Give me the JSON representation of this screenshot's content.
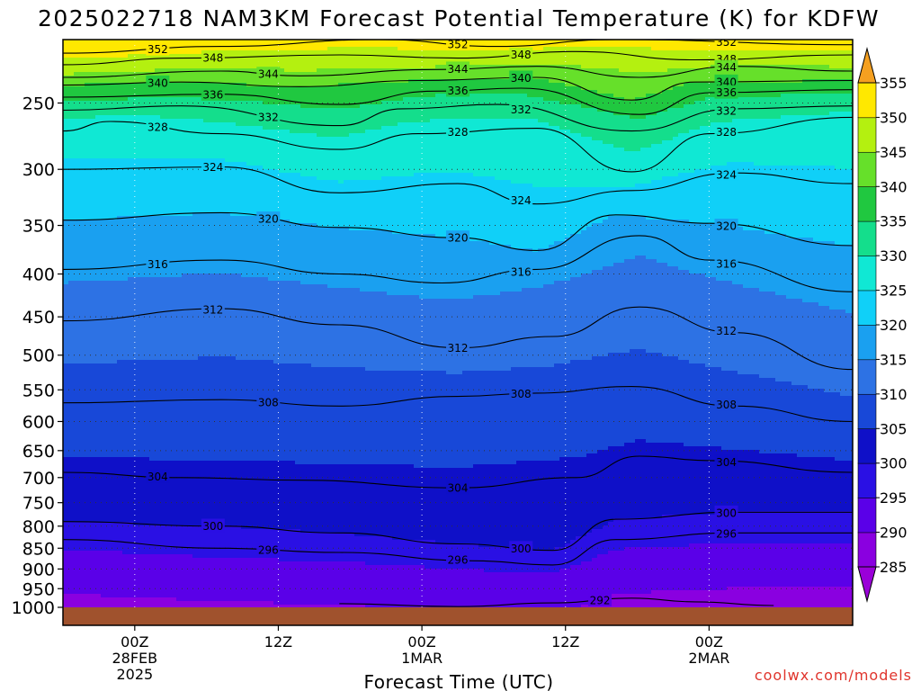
{
  "chart_data": {
    "type": "heatmap",
    "title": "2025022718 NAM3KM Forecast Potential Temperature (K) for KDFW",
    "xlabel": "Forecast Time (UTC)",
    "ylabel": "",
    "y_scale": "log",
    "y_reversed": true,
    "ylim": [
      1000,
      210
    ],
    "xlim": [
      "2025-02-27T18:00Z",
      "2025-03-02T12:00Z"
    ],
    "y_ticks": [
      250,
      300,
      350,
      400,
      450,
      500,
      550,
      600,
      650,
      700,
      750,
      800,
      850,
      900,
      950,
      1000
    ],
    "y_tick_labels": [
      "250",
      "300",
      "350",
      "400",
      "450",
      "500",
      "550",
      "600",
      "650",
      "700",
      "750",
      "800",
      "850",
      "900",
      "950",
      "1000"
    ],
    "x_ticks": [
      {
        "time": "2025-02-28T00:00Z",
        "lines": [
          "00Z",
          "28FEB",
          "2025"
        ]
      },
      {
        "time": "2025-02-28T12:00Z",
        "lines": [
          "12Z"
        ]
      },
      {
        "time": "2025-03-01T00:00Z",
        "lines": [
          "00Z",
          "1MAR"
        ]
      },
      {
        "time": "2025-03-01T12:00Z",
        "lines": [
          "12Z"
        ]
      },
      {
        "time": "2025-03-02T00:00Z",
        "lines": [
          "00Z",
          "2MAR"
        ]
      }
    ],
    "grid": "dotted",
    "colorbar": {
      "levels": [
        285,
        290,
        295,
        300,
        305,
        310,
        315,
        320,
        325,
        330,
        335,
        340,
        345,
        350,
        355
      ],
      "labels": [
        "285",
        "290",
        "295",
        "300",
        "305",
        "310",
        "315",
        "320",
        "325",
        "330",
        "335",
        "340",
        "345",
        "350",
        "355"
      ],
      "colors": [
        "#8a00e0",
        "#5a00e8",
        "#2a10e4",
        "#0f10c8",
        "#1848d8",
        "#2d72e4",
        "#1aa0f0",
        "#10d0f8",
        "#10e8d4",
        "#14de8c",
        "#20c840",
        "#66e02a",
        "#b4f010",
        "#ffe800",
        "#fbb40a"
      ],
      "below_color": "#9a00d8",
      "above_color": "#f5a020"
    },
    "contour_interval_K": 4,
    "contour_labels_visible": [
      "352",
      "348",
      "344",
      "340",
      "336",
      "332",
      "328",
      "324",
      "320",
      "316",
      "312",
      "308",
      "304",
      "300",
      "296",
      "292"
    ],
    "contours": [
      {
        "value": 352,
        "points": [
          [
            0,
            218
          ],
          [
            0.2,
            214
          ],
          [
            0.4,
            210
          ],
          [
            0.55,
            214
          ],
          [
            0.7,
            210
          ],
          [
            1,
            213
          ]
        ]
      },
      {
        "value": 348,
        "points": [
          [
            0,
            225
          ],
          [
            0.15,
            221
          ],
          [
            0.35,
            219
          ],
          [
            0.5,
            221
          ],
          [
            0.65,
            217
          ],
          [
            0.8,
            222
          ],
          [
            1,
            219
          ]
        ]
      },
      {
        "value": 344,
        "points": [
          [
            0,
            233
          ],
          [
            0.2,
            229
          ],
          [
            0.3,
            232
          ],
          [
            0.47,
            228
          ],
          [
            0.6,
            226
          ],
          [
            0.73,
            233
          ],
          [
            0.85,
            226
          ],
          [
            1,
            229
          ]
        ]
      },
      {
        "value": 340,
        "points": [
          [
            0,
            238
          ],
          [
            0.15,
            236
          ],
          [
            0.3,
            239
          ],
          [
            0.45,
            235
          ],
          [
            0.6,
            233
          ],
          [
            0.72,
            248
          ],
          [
            0.8,
            236
          ],
          [
            1,
            235
          ]
        ]
      },
      {
        "value": 336,
        "points": [
          [
            0,
            246
          ],
          [
            0.2,
            244
          ],
          [
            0.35,
            251
          ],
          [
            0.47,
            242
          ],
          [
            0.58,
            240
          ],
          [
            0.73,
            258
          ],
          [
            0.82,
            243
          ],
          [
            1,
            241
          ]
        ]
      },
      {
        "value": 332,
        "points": [
          [
            0,
            255
          ],
          [
            0.15,
            252
          ],
          [
            0.35,
            266
          ],
          [
            0.43,
            254
          ],
          [
            0.55,
            251
          ],
          [
            0.72,
            270
          ],
          [
            0.85,
            254
          ],
          [
            1,
            252
          ]
        ]
      },
      {
        "value": 328,
        "points": [
          [
            0,
            270
          ],
          [
            0.06,
            263
          ],
          [
            0.2,
            272
          ],
          [
            0.35,
            284
          ],
          [
            0.45,
            272
          ],
          [
            0.6,
            268
          ],
          [
            0.72,
            302
          ],
          [
            0.82,
            272
          ],
          [
            1,
            260
          ]
        ]
      },
      {
        "value": 324,
        "points": [
          [
            0,
            300
          ],
          [
            0.2,
            298
          ],
          [
            0.35,
            320
          ],
          [
            0.5,
            312
          ],
          [
            0.6,
            330
          ],
          [
            0.72,
            318
          ],
          [
            0.85,
            303
          ],
          [
            1,
            312
          ]
        ]
      },
      {
        "value": 320,
        "points": [
          [
            0,
            345
          ],
          [
            0.2,
            338
          ],
          [
            0.35,
            352
          ],
          [
            0.5,
            362
          ],
          [
            0.6,
            375
          ],
          [
            0.7,
            340
          ],
          [
            0.82,
            348
          ],
          [
            1,
            370
          ]
        ]
      },
      {
        "value": 316,
        "points": [
          [
            0,
            395
          ],
          [
            0.2,
            385
          ],
          [
            0.35,
            400
          ],
          [
            0.48,
            410
          ],
          [
            0.6,
            395
          ],
          [
            0.73,
            360
          ],
          [
            0.82,
            385
          ],
          [
            1,
            420
          ]
        ]
      },
      {
        "value": 312,
        "points": [
          [
            0,
            455
          ],
          [
            0.2,
            440
          ],
          [
            0.35,
            460
          ],
          [
            0.5,
            490
          ],
          [
            0.62,
            475
          ],
          [
            0.73,
            438
          ],
          [
            0.85,
            470
          ],
          [
            1,
            520
          ]
        ]
      },
      {
        "value": 308,
        "points": [
          [
            0,
            570
          ],
          [
            0.2,
            565
          ],
          [
            0.35,
            575
          ],
          [
            0.5,
            560
          ],
          [
            0.6,
            555
          ],
          [
            0.72,
            545
          ],
          [
            0.85,
            575
          ],
          [
            1,
            600
          ]
        ]
      },
      {
        "value": 304,
        "points": [
          [
            0,
            690
          ],
          [
            0.15,
            700
          ],
          [
            0.3,
            705
          ],
          [
            0.5,
            720
          ],
          [
            0.65,
            700
          ],
          [
            0.73,
            660
          ],
          [
            0.82,
            668
          ],
          [
            1,
            690
          ]
        ]
      },
      {
        "value": 300,
        "points": [
          [
            0,
            790
          ],
          [
            0.2,
            800
          ],
          [
            0.35,
            815
          ],
          [
            0.5,
            840
          ],
          [
            0.62,
            855
          ],
          [
            0.7,
            785
          ],
          [
            0.85,
            770
          ],
          [
            1,
            770
          ]
        ]
      },
      {
        "value": 296,
        "points": [
          [
            0,
            830
          ],
          [
            0.2,
            850
          ],
          [
            0.35,
            860
          ],
          [
            0.52,
            880
          ],
          [
            0.62,
            890
          ],
          [
            0.7,
            830
          ],
          [
            0.85,
            815
          ],
          [
            1,
            815
          ]
        ]
      },
      {
        "value": 292,
        "points": [
          [
            0.35,
            990
          ],
          [
            0.5,
            998
          ],
          [
            0.62,
            988
          ],
          [
            0.72,
            975
          ],
          [
            0.8,
            985
          ],
          [
            0.9,
            995
          ]
        ]
      }
    ],
    "surface_color": "#a0522d",
    "footer_link": "coolwx.com/models"
  }
}
